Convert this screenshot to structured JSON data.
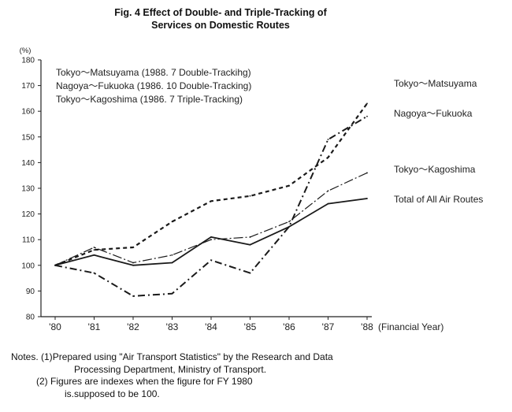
{
  "title_lines": [
    "Fig. 4 Effect of Double- and Triple-Tracking of",
    "Services on Domestic Routes"
  ],
  "chart_data": {
    "type": "line",
    "title": "Fig. 4 Effect of Double- and Triple-Tracking of Services on Domestic Routes",
    "y_unit": "(%)",
    "xlabel": "(Financial Year)",
    "categories": [
      "'80",
      "'81",
      "'82",
      "'83",
      "'84",
      "'85",
      "'86",
      "'87",
      "'88"
    ],
    "ylim": [
      80,
      180
    ],
    "yticks": [
      80,
      90,
      100,
      110,
      120,
      130,
      140,
      150,
      160,
      170,
      180
    ],
    "grid": false,
    "legend_lines": [
      "Tokyo〜Matsuyama (1988. 7 Double-Trackihg)",
      "Nagoya〜Fukuoka (1986. 10 Double-Tracking)",
      "Tokyo〜Kagoshima (1986. 7 Triple-Tracking)"
    ],
    "series": [
      {
        "name": "Tokyo〜Matsuyama",
        "style": "dashed",
        "values": [
          100,
          106,
          107,
          117,
          125,
          127,
          131,
          142,
          163
        ]
      },
      {
        "name": "Nagoya〜Fukuoka",
        "style": "dashdot",
        "values": [
          100,
          97,
          88,
          89,
          102,
          97,
          115,
          149,
          158
        ]
      },
      {
        "name": "Tokyo〜Kagoshima",
        "style": "dashdot-thin",
        "values": [
          100,
          107,
          101,
          104,
          110,
          111,
          117,
          129,
          136
        ]
      },
      {
        "name": "Total of All Air Routes",
        "style": "solid",
        "values": [
          100,
          104,
          100,
          101,
          111,
          108,
          115,
          124,
          126
        ]
      }
    ]
  },
  "notes": {
    "prefix": "Notes. (1)",
    "note1_line1": "Prepared using \"Air Transport Statistics\" by the Research and Data",
    "note1_line2": "Processing Department, Ministry of Transport.",
    "note2_line1": "(2) Figures are indexes when the figure for FY 1980",
    "note2_line2": "is.supposed to be 100."
  }
}
